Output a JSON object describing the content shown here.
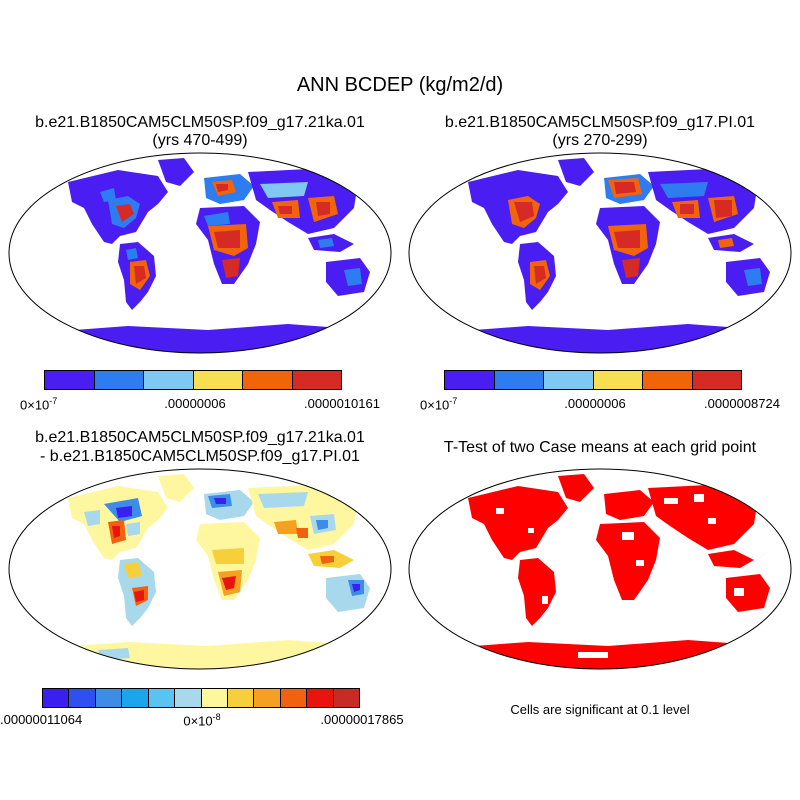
{
  "figure": {
    "title": "ANN BCDEP (kg/m2/d)"
  },
  "panels": {
    "case1": {
      "name": "b.e21.B1850CAM5CLM50SP.f09_g17.21ka.01",
      "years": "(yrs 470-499)",
      "colorbar": {
        "colors": [
          "#4a1ef2",
          "#2e7df0",
          "#7fc8f2",
          "#f7de52",
          "#f2640a",
          "#d62a26"
        ],
        "label_left_base": "0×10",
        "label_left_exp": "-7",
        "label_mid": ".00000006",
        "label_right": ".0000010161"
      }
    },
    "case2": {
      "name": "b.e21.B1850CAM5CLM50SP.f09_g17.PI.01",
      "years": "(yrs 270-299)",
      "colorbar": {
        "colors": [
          "#4a1ef2",
          "#2e7df0",
          "#7fc8f2",
          "#f7de52",
          "#f2640a",
          "#d62a26"
        ],
        "label_left_base": "0×10",
        "label_left_exp": "-7",
        "label_mid": ".00000006",
        "label_right": ".0000008724"
      }
    },
    "diff": {
      "line1": "b.e21.B1850CAM5CLM50SP.f09_g17.21ka.01",
      "line2": "- b.e21.B1850CAM5CLM50SP.f09_g17.PI.01",
      "colorbar": {
        "colors": [
          "#3b1ef0",
          "#2f4ff0",
          "#3d8ce8",
          "#1aa6ee",
          "#59c4f0",
          "#a8d8ec",
          "#fff6a0",
          "#f7cf3a",
          "#f5a020",
          "#f2620e",
          "#e8140e",
          "#c82a26"
        ],
        "label_left": ".00000011064",
        "label_mid_base": "0×10",
        "label_mid_exp": "-8",
        "label_right": ".00000017865"
      }
    },
    "ttest": {
      "title": "T-Test of two Case means at each grid point",
      "note": "Cells are significant at 0.1 level",
      "fill_color": "#ff0000"
    }
  }
}
